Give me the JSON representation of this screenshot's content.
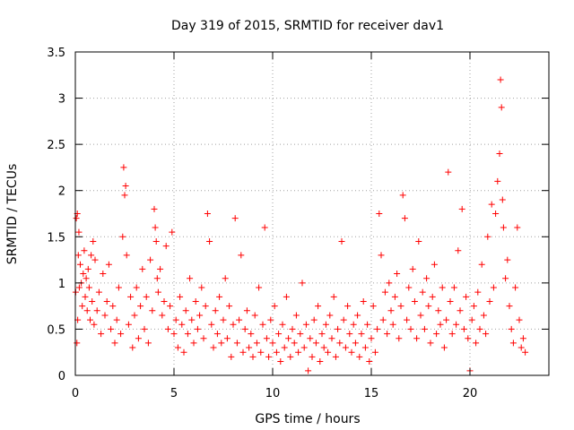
{
  "chart_data": {
    "type": "scatter",
    "title": "Day 319 of 2015, SRMTID for receiver dav1",
    "xlabel": "GPS time / hours",
    "ylabel": "SRMTID / TECUs",
    "xlim": [
      0,
      24
    ],
    "ylim": [
      0,
      3.5
    ],
    "xticks": [
      0,
      5,
      10,
      15,
      20
    ],
    "yticks": [
      0,
      0.5,
      1,
      1.5,
      2,
      2.5,
      3,
      3.5
    ],
    "xtick_labels": [
      "0",
      "5",
      "10",
      "15",
      "20"
    ],
    "ytick_labels": [
      "0",
      "0.5",
      "1",
      "1.5",
      "2",
      "2.5",
      "3",
      "3.5"
    ],
    "grid": true,
    "marker": "+",
    "series": [
      {
        "name": "dav1",
        "color": "#ff0000",
        "x": [
          0.02,
          0.05,
          0.08,
          0.1,
          0.12,
          0.15,
          0.18,
          0.2,
          0.25,
          0.3,
          0.35,
          0.4,
          0.45,
          0.5,
          0.55,
          0.6,
          0.65,
          0.7,
          0.75,
          0.8,
          0.85,
          0.9,
          0.95,
          1.0,
          1.1,
          1.2,
          1.3,
          1.4,
          1.5,
          1.6,
          1.7,
          1.8,
          1.9,
          2.0,
          2.1,
          2.2,
          2.3,
          2.4,
          2.45,
          2.5,
          2.55,
          2.6,
          2.7,
          2.8,
          2.9,
          3.0,
          3.1,
          3.2,
          3.3,
          3.4,
          3.5,
          3.6,
          3.7,
          3.8,
          3.9,
          4.0,
          4.05,
          4.1,
          4.15,
          4.2,
          4.3,
          4.4,
          4.5,
          4.6,
          4.7,
          4.8,
          4.9,
          5.0,
          5.1,
          5.2,
          5.3,
          5.4,
          5.5,
          5.6,
          5.7,
          5.8,
          5.9,
          6.0,
          6.1,
          6.2,
          6.3,
          6.4,
          6.5,
          6.6,
          6.7,
          6.8,
          6.9,
          7.0,
          7.1,
          7.2,
          7.3,
          7.4,
          7.5,
          7.6,
          7.7,
          7.8,
          7.9,
          8.0,
          8.1,
          8.2,
          8.3,
          8.4,
          8.5,
          8.6,
          8.7,
          8.8,
          8.9,
          9.0,
          9.1,
          9.2,
          9.3,
          9.4,
          9.5,
          9.6,
          9.7,
          9.8,
          9.9,
          10.0,
          10.1,
          10.2,
          10.3,
          10.4,
          10.5,
          10.6,
          10.7,
          10.8,
          10.9,
          11.0,
          11.1,
          11.2,
          11.3,
          11.4,
          11.5,
          11.6,
          11.7,
          11.8,
          11.9,
          12.0,
          12.1,
          12.2,
          12.3,
          12.4,
          12.5,
          12.6,
          12.7,
          12.8,
          12.9,
          13.0,
          13.1,
          13.2,
          13.3,
          13.4,
          13.5,
          13.6,
          13.7,
          13.8,
          13.9,
          14.0,
          14.1,
          14.2,
          14.3,
          14.4,
          14.5,
          14.6,
          14.7,
          14.8,
          14.9,
          15.0,
          15.1,
          15.2,
          15.3,
          15.4,
          15.5,
          15.6,
          15.7,
          15.8,
          15.9,
          16.0,
          16.1,
          16.2,
          16.3,
          16.4,
          16.5,
          16.6,
          16.7,
          16.8,
          16.9,
          17.0,
          17.1,
          17.2,
          17.3,
          17.4,
          17.5,
          17.6,
          17.7,
          17.8,
          17.9,
          18.0,
          18.1,
          18.2,
          18.3,
          18.4,
          18.5,
          18.6,
          18.7,
          18.8,
          18.9,
          19.0,
          19.1,
          19.2,
          19.3,
          19.4,
          19.5,
          19.6,
          19.7,
          19.8,
          19.9,
          20.0,
          20.1,
          20.2,
          20.3,
          20.4,
          20.5,
          20.6,
          20.7,
          20.8,
          20.9,
          21.0,
          21.1,
          21.2,
          21.3,
          21.4,
          21.5,
          21.55,
          21.6,
          21.65,
          21.7,
          21.8,
          21.9,
          22.0,
          22.1,
          22.2,
          22.3,
          22.4,
          22.5,
          22.6,
          22.7,
          22.8
        ],
        "y": [
          0.9,
          1.7,
          0.35,
          1.75,
          0.6,
          1.3,
          1.55,
          0.95,
          1.2,
          1.0,
          0.75,
          1.1,
          1.35,
          0.85,
          1.05,
          0.7,
          1.15,
          0.95,
          0.6,
          1.3,
          0.8,
          1.45,
          0.55,
          1.25,
          0.7,
          0.9,
          0.45,
          1.1,
          0.65,
          0.8,
          1.2,
          0.5,
          0.75,
          0.35,
          0.6,
          0.95,
          0.45,
          1.5,
          2.25,
          1.95,
          2.05,
          1.3,
          0.55,
          0.85,
          0.3,
          0.65,
          0.95,
          0.4,
          0.75,
          1.15,
          0.5,
          0.85,
          0.35,
          1.25,
          0.7,
          1.8,
          1.6,
          1.45,
          1.05,
          0.9,
          1.15,
          0.65,
          0.8,
          1.4,
          0.5,
          0.75,
          1.55,
          0.45,
          0.6,
          0.3,
          0.85,
          0.55,
          0.25,
          0.7,
          0.45,
          1.05,
          0.6,
          0.35,
          0.8,
          0.5,
          0.65,
          0.95,
          0.4,
          0.75,
          1.75,
          1.45,
          0.55,
          0.3,
          0.7,
          0.45,
          0.85,
          0.35,
          0.6,
          1.05,
          0.4,
          0.75,
          0.2,
          0.55,
          1.7,
          0.35,
          0.6,
          1.3,
          0.25,
          0.5,
          0.7,
          0.3,
          0.45,
          0.2,
          0.65,
          0.35,
          0.95,
          0.25,
          0.55,
          1.6,
          0.4,
          0.2,
          0.6,
          0.35,
          0.75,
          0.25,
          0.45,
          0.15,
          0.55,
          0.3,
          0.85,
          0.4,
          0.2,
          0.5,
          0.35,
          0.65,
          0.25,
          0.45,
          1.0,
          0.3,
          0.55,
          0.05,
          0.4,
          0.2,
          0.6,
          0.35,
          0.75,
          0.15,
          0.45,
          0.3,
          0.55,
          0.25,
          0.65,
          0.4,
          0.85,
          0.2,
          0.5,
          0.35,
          1.45,
          0.6,
          0.3,
          0.75,
          0.45,
          0.25,
          0.55,
          0.35,
          0.65,
          0.2,
          0.45,
          0.8,
          0.3,
          0.55,
          0.15,
          0.4,
          0.75,
          0.25,
          0.5,
          1.75,
          1.3,
          0.6,
          0.9,
          0.45,
          1.0,
          0.7,
          0.55,
          0.85,
          1.1,
          0.4,
          0.75,
          1.95,
          1.7,
          0.6,
          0.95,
          0.5,
          1.15,
          0.8,
          0.4,
          1.45,
          0.65,
          0.9,
          0.5,
          1.05,
          0.75,
          0.35,
          0.85,
          1.2,
          0.45,
          0.7,
          0.55,
          0.95,
          0.3,
          0.6,
          2.2,
          0.8,
          0.45,
          0.95,
          0.55,
          1.35,
          0.7,
          1.8,
          0.5,
          0.85,
          0.4,
          0.05,
          0.6,
          0.75,
          0.35,
          0.9,
          0.5,
          1.2,
          0.65,
          0.45,
          1.5,
          0.8,
          1.85,
          0.95,
          1.75,
          2.1,
          2.4,
          3.2,
          2.9,
          1.9,
          1.6,
          1.05,
          1.25,
          0.75,
          0.5,
          0.35,
          0.95,
          1.6,
          0.6,
          0.3,
          0.4,
          0.25
        ]
      }
    ]
  }
}
